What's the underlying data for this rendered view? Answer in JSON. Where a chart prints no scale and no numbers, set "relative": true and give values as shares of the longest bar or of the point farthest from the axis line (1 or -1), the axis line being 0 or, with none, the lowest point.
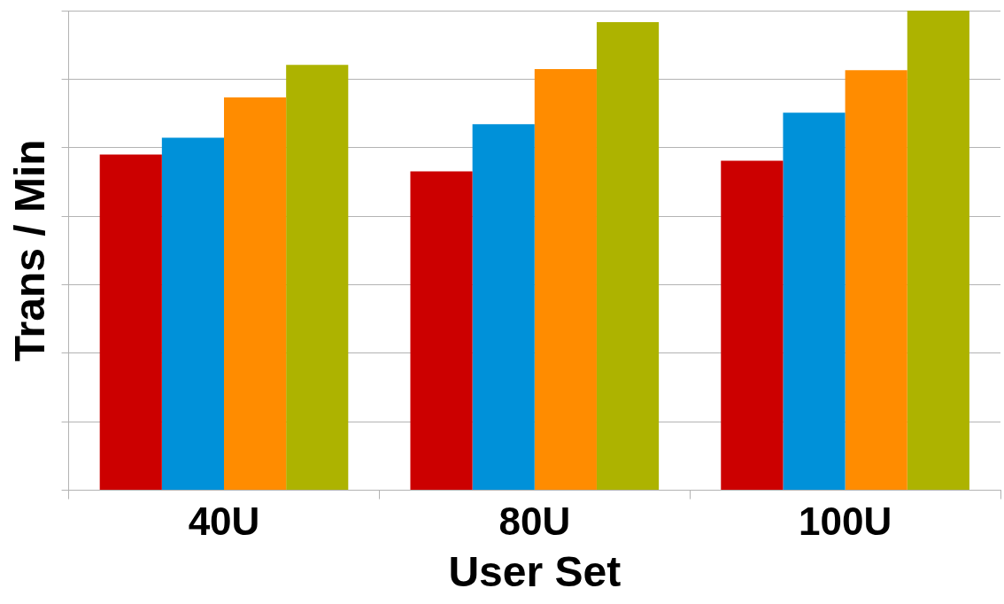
{
  "chart_data": {
    "type": "bar",
    "xlabel": "User Set",
    "ylabel": "Trans / Min",
    "categories": [
      "40U",
      "80U",
      "100U"
    ],
    "relative": true,
    "grid": "y",
    "legend": false,
    "series": [
      {
        "color": "#cc0000",
        "values": [
          0.7,
          0.665,
          0.687
        ]
      },
      {
        "color": "#0091d9",
        "values": [
          0.735,
          0.763,
          0.787
        ]
      },
      {
        "color": "#ff8c00",
        "values": [
          0.819,
          0.878,
          0.876
        ]
      },
      {
        "color": "#adb300",
        "values": [
          0.887,
          0.976,
          1
        ]
      }
    ]
  }
}
